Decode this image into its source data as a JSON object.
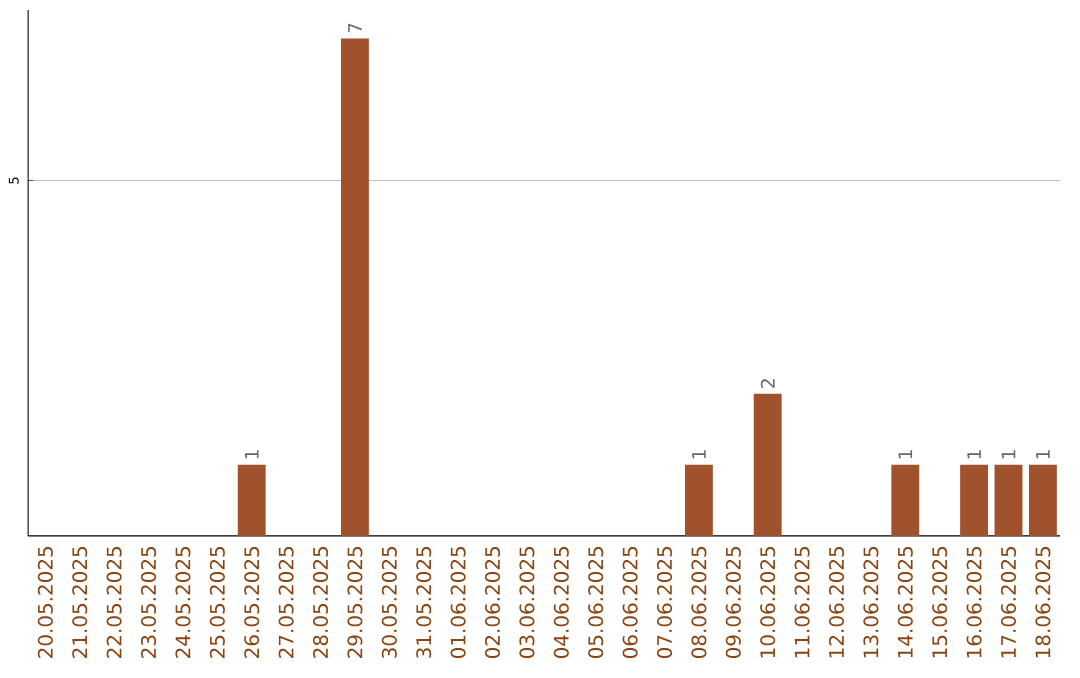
{
  "chart_data": {
    "type": "bar",
    "categories": [
      "20.05.2025",
      "21.05.2025",
      "22.05.2025",
      "23.05.2025",
      "24.05.2025",
      "25.05.2025",
      "26.05.2025",
      "27.05.2025",
      "28.05.2025",
      "29.05.2025",
      "30.05.2025",
      "31.05.2025",
      "01.06.2025",
      "02.06.2025",
      "03.06.2025",
      "04.06.2025",
      "05.06.2025",
      "06.06.2025",
      "07.06.2025",
      "08.06.2025",
      "09.06.2025",
      "10.06.2025",
      "11.06.2025",
      "12.06.2025",
      "13.06.2025",
      "14.06.2025",
      "15.06.2025",
      "16.06.2025",
      "17.06.2025",
      "18.06.2025"
    ],
    "values": [
      0,
      0,
      0,
      0,
      0,
      0,
      1,
      0,
      0,
      7,
      0,
      0,
      0,
      0,
      0,
      0,
      0,
      0,
      0,
      1,
      0,
      2,
      0,
      0,
      0,
      1,
      0,
      1,
      1,
      1
    ],
    "value_labels": [
      null,
      null,
      null,
      null,
      null,
      null,
      "1",
      null,
      null,
      "7",
      null,
      null,
      null,
      null,
      null,
      null,
      null,
      null,
      null,
      "1",
      null,
      "2",
      null,
      null,
      null,
      "1",
      null,
      "1",
      "1",
      "1"
    ],
    "color": "#a0522d",
    "ylim": [
      0,
      7.4
    ],
    "yticks": [
      5
    ],
    "grid": "y"
  }
}
